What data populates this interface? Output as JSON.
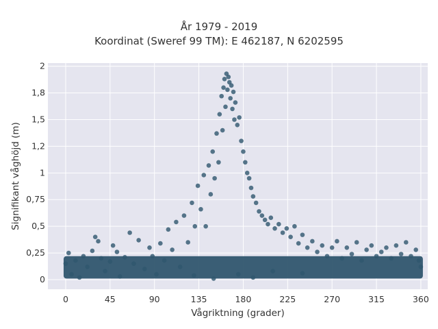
{
  "chart_data": {
    "type": "scatter",
    "title": "År 1979 - 2019",
    "subtitle": "Koordinat (Sweref 99 TM): E 462187, N 6202595",
    "xlabel": "Vågriktning (grader)",
    "ylabel": "Signifikant våghöjd (m)",
    "xlim": [
      -18,
      367
    ],
    "ylim": [
      -0.09,
      2.03
    ],
    "x_ticks": [
      0,
      45,
      90,
      135,
      180,
      225,
      270,
      315,
      360
    ],
    "x_tick_labels": [
      "0",
      "45",
      "90",
      "135",
      "180",
      "225",
      "270",
      "315",
      "360"
    ],
    "y_ticks": [
      0,
      0.25,
      0.5,
      0.75,
      1,
      1.25,
      1.5,
      1.75,
      2
    ],
    "y_tick_labels": [
      "0",
      "0,25",
      "0,5",
      "0,75",
      "1",
      "1,2",
      "1,5",
      "1,8",
      "2"
    ],
    "grid": true,
    "legend": "none",
    "marker_color": "#30566e",
    "background_color": "#e5e5ef",
    "points": [
      [
        0,
        0.15
      ],
      [
        3,
        0.25
      ],
      [
        6,
        0.05
      ],
      [
        10,
        0.18
      ],
      [
        14,
        0.02
      ],
      [
        18,
        0.22
      ],
      [
        22,
        0.12
      ],
      [
        27,
        0.27
      ],
      [
        30,
        0.4
      ],
      [
        33,
        0.36
      ],
      [
        36,
        0.2
      ],
      [
        40,
        0.08
      ],
      [
        45,
        0.17
      ],
      [
        48,
        0.32
      ],
      [
        52,
        0.26
      ],
      [
        55,
        0.03
      ],
      [
        60,
        0.21
      ],
      [
        65,
        0.44
      ],
      [
        69,
        0.15
      ],
      [
        74,
        0.37
      ],
      [
        80,
        0.1
      ],
      [
        85,
        0.3
      ],
      [
        88,
        0.22
      ],
      [
        92,
        0.05
      ],
      [
        96,
        0.34
      ],
      [
        100,
        0.18
      ],
      [
        104,
        0.47
      ],
      [
        108,
        0.28
      ],
      [
        112,
        0.54
      ],
      [
        116,
        0.12
      ],
      [
        120,
        0.6
      ],
      [
        124,
        0.35
      ],
      [
        128,
        0.72
      ],
      [
        131,
        0.5
      ],
      [
        134,
        0.88
      ],
      [
        137,
        0.66
      ],
      [
        140,
        0.98
      ],
      [
        142,
        0.5
      ],
      [
        145,
        1.07
      ],
      [
        147,
        0.8
      ],
      [
        149,
        1.2
      ],
      [
        151,
        0.95
      ],
      [
        153,
        1.37
      ],
      [
        155,
        1.1
      ],
      [
        156,
        1.55
      ],
      [
        158,
        1.72
      ],
      [
        159,
        1.4
      ],
      [
        160,
        1.8
      ],
      [
        161,
        1.88
      ],
      [
        162,
        1.62
      ],
      [
        163,
        1.93
      ],
      [
        164,
        1.78
      ],
      [
        165,
        1.9
      ],
      [
        166,
        1.85
      ],
      [
        167,
        1.7
      ],
      [
        168,
        1.82
      ],
      [
        169,
        1.6
      ],
      [
        170,
        1.76
      ],
      [
        171,
        1.5
      ],
      [
        172,
        1.66
      ],
      [
        174,
        1.45
      ],
      [
        176,
        1.52
      ],
      [
        178,
        1.3
      ],
      [
        180,
        1.2
      ],
      [
        182,
        1.1
      ],
      [
        184,
        1.0
      ],
      [
        186,
        0.95
      ],
      [
        188,
        0.86
      ],
      [
        190,
        0.78
      ],
      [
        193,
        0.72
      ],
      [
        196,
        0.64
      ],
      [
        199,
        0.6
      ],
      [
        202,
        0.56
      ],
      [
        205,
        0.52
      ],
      [
        208,
        0.58
      ],
      [
        212,
        0.48
      ],
      [
        216,
        0.52
      ],
      [
        220,
        0.44
      ],
      [
        224,
        0.48
      ],
      [
        228,
        0.4
      ],
      [
        232,
        0.5
      ],
      [
        236,
        0.34
      ],
      [
        240,
        0.42
      ],
      [
        245,
        0.3
      ],
      [
        250,
        0.36
      ],
      [
        255,
        0.26
      ],
      [
        260,
        0.32
      ],
      [
        265,
        0.22
      ],
      [
        270,
        0.3
      ],
      [
        275,
        0.36
      ],
      [
        280,
        0.2
      ],
      [
        285,
        0.3
      ],
      [
        290,
        0.24
      ],
      [
        295,
        0.35
      ],
      [
        300,
        0.18
      ],
      [
        305,
        0.28
      ],
      [
        310,
        0.32
      ],
      [
        315,
        0.22
      ],
      [
        320,
        0.26
      ],
      [
        325,
        0.3
      ],
      [
        330,
        0.2
      ],
      [
        335,
        0.32
      ],
      [
        340,
        0.24
      ],
      [
        345,
        0.35
      ],
      [
        350,
        0.22
      ],
      [
        355,
        0.28
      ],
      [
        358,
        0.18
      ],
      [
        360,
        0.12
      ],
      [
        175,
        0.05
      ],
      [
        190,
        0.02
      ],
      [
        210,
        0.08
      ],
      [
        150,
        0.01
      ],
      [
        130,
        0.04
      ],
      [
        240,
        0.06
      ]
    ]
  }
}
